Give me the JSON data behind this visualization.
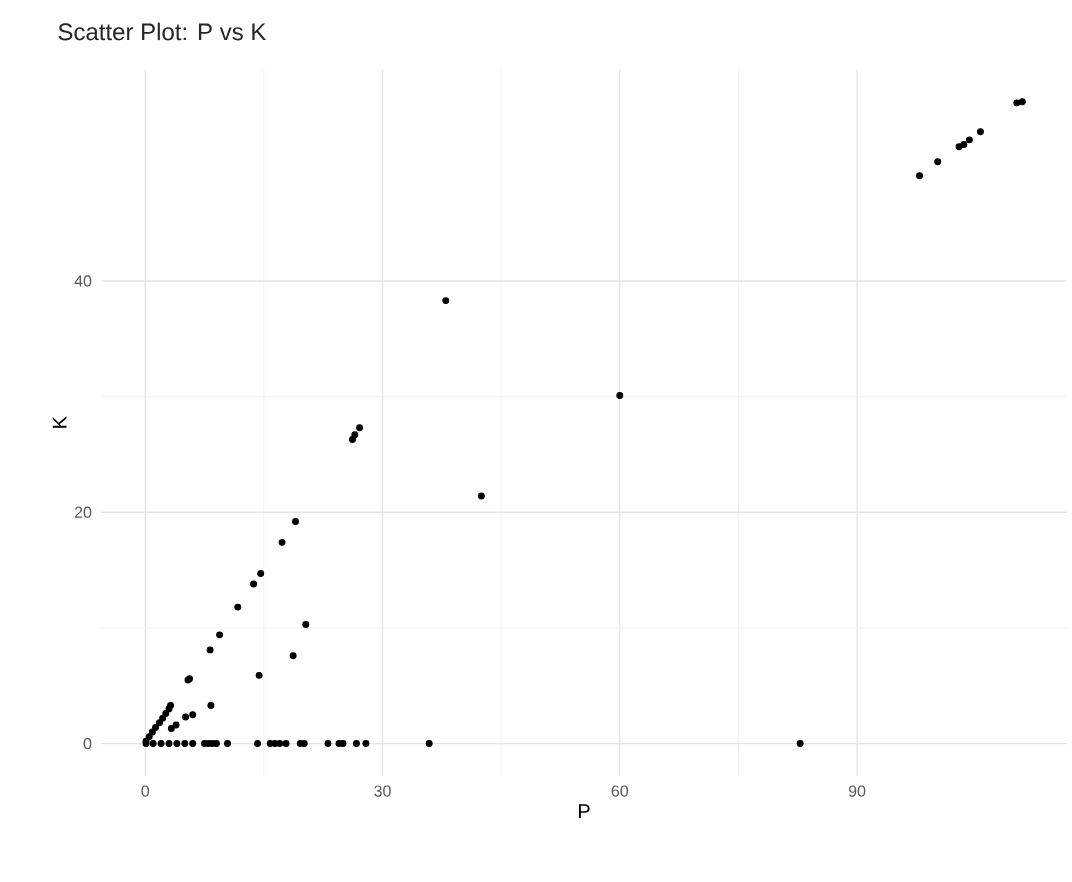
{
  "chart_data": {
    "type": "scatter",
    "title": "Scatter Plot: P vs K",
    "xlabel": "P",
    "ylabel": "K",
    "x": [
      97.9,
      100.2,
      102.9,
      103.5,
      104.2,
      105.6,
      110.2,
      110.9,
      38.0,
      60.0,
      42.5,
      26.2,
      26.5,
      27.1,
      19.0,
      17.3,
      14.6,
      13.7,
      11.7,
      9.4,
      8.2,
      20.3,
      18.7,
      14.4,
      5.6,
      5.4,
      8.3,
      3.2,
      0.1,
      0.5,
      0.9,
      1.3,
      1.8,
      2.2,
      2.6,
      3.0,
      6.0,
      5.1,
      3.9,
      3.3,
      0.1,
      1,
      2,
      3,
      4,
      5,
      6,
      7.5,
      8,
      8.5,
      9,
      10.4,
      14.2,
      15.8,
      16.4,
      17,
      17.8,
      19.6,
      20.1,
      23.1,
      24.5,
      25.0,
      26.7,
      27.9,
      35.9,
      82.8
    ],
    "values": [
      49.1,
      50.3,
      51.6,
      51.8,
      52.2,
      52.9,
      55.4,
      55.5,
      38.3,
      30.1,
      21.4,
      26.3,
      26.7,
      27.3,
      19.2,
      17.4,
      14.7,
      13.8,
      11.8,
      9.4,
      8.1,
      10.3,
      7.6,
      5.9,
      5.6,
      5.5,
      3.3,
      3.3,
      0.2,
      0.6,
      1.0,
      1.4,
      1.8,
      2.2,
      2.6,
      3.0,
      2.5,
      2.3,
      1.6,
      1.3,
      0,
      0,
      0,
      0,
      0,
      0,
      0,
      0,
      0,
      0,
      0,
      0,
      0,
      0,
      0,
      0,
      0,
      0,
      0,
      0,
      0,
      0,
      0,
      0,
      0,
      0
    ],
    "color": "#000000",
    "marker": "circle",
    "grid": true,
    "xlim": [
      -5.55,
      116.5
    ],
    "ylim": [
      -2.8,
      58.3
    ],
    "xticks": [
      0,
      30,
      60,
      90
    ],
    "yticks": [
      0,
      20,
      40
    ]
  }
}
